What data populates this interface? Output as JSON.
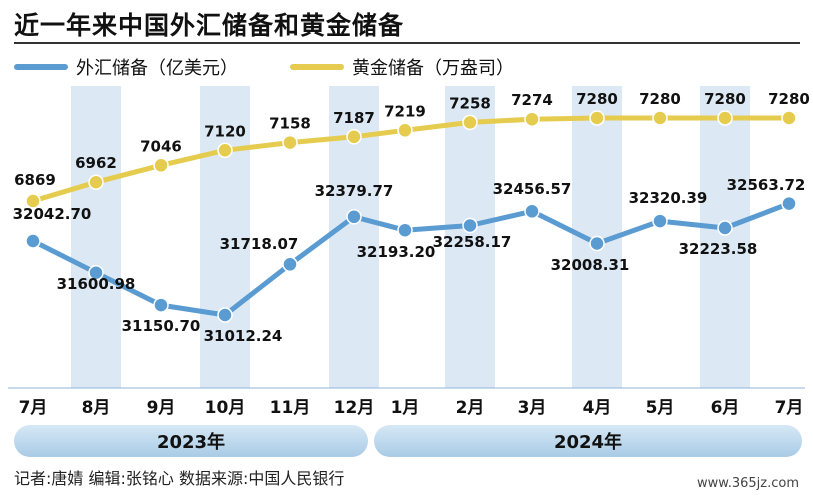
{
  "title": "近一年来中国外汇储备和黄金储备",
  "colors": {
    "forex": "#5a9bd1",
    "gold": "#e5cc4f",
    "column": "#dce9f5"
  },
  "chart_data": {
    "type": "line",
    "categories": [
      "7月",
      "8月",
      "9月",
      "10月",
      "11月",
      "12月",
      "1月",
      "2月",
      "3月",
      "4月",
      "5月",
      "6月",
      "7月"
    ],
    "series": [
      {
        "name": "外汇储备（亿美元）",
        "values": [
          32042.7,
          31600.98,
          31150.7,
          31012.24,
          31718.07,
          32379.77,
          32193.2,
          32258.17,
          32456.57,
          32008.31,
          32320.39,
          32223.58,
          32563.72
        ],
        "labels": [
          "32042.70",
          "31600.98",
          "31150.70",
          "31012.24",
          "31718.07",
          "32379.77",
          "32193.20",
          "32258.17",
          "32456.57",
          "32008.31",
          "32320.39",
          "32223.58",
          "32563.72"
        ]
      },
      {
        "name": "黄金储备（万盎司）",
        "values": [
          6869,
          6962,
          7046,
          7120,
          7158,
          7187,
          7219,
          7258,
          7274,
          7280,
          7280,
          7280,
          7280
        ],
        "labels": [
          "6869",
          "6962",
          "7046",
          "7120",
          "7158",
          "7187",
          "7219",
          "7258",
          "7274",
          "7280",
          "7280",
          "7280",
          "7280"
        ]
      }
    ],
    "years": [
      "2023年",
      "2024年"
    ]
  },
  "credits": "记者:唐婧    编辑:张铭心    数据来源:中国人民银行",
  "watermark": "www.365jz.com"
}
